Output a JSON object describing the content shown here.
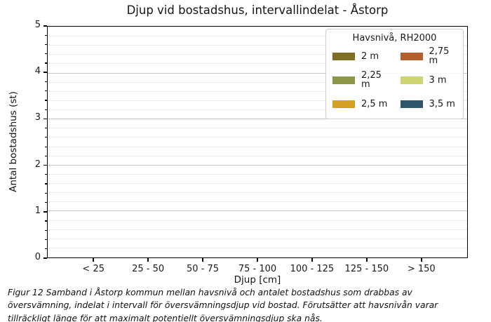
{
  "figure": {
    "caption": "Figur 12 Samband i Åstorp kommun mellan havsnivå och antalet bostadshus som drabbas av översvämning, indelat i intervall för översvämningsdjup vid bostad. Förutsätter att havsnivån varar tillräckligt länge för att maximalt potentiellt översvämningsdjup ska nås."
  },
  "chart_data": {
    "type": "bar",
    "title": "Djup vid bostadshus, intervallindelat - Åstorp",
    "xlabel": "Djup [cm]",
    "ylabel": "Antal bostadshus (st)",
    "categories": [
      "< 25",
      "25 - 50",
      "50 - 75",
      "75 - 100",
      "100 - 125",
      "125 - 150",
      "> 150"
    ],
    "ylim": [
      0,
      5
    ],
    "yticks": [
      0,
      1,
      2,
      3,
      4,
      5
    ],
    "grid": {
      "horizontal_major_step": 1,
      "horizontal_minor_step": 0.2,
      "vertical": false
    },
    "legend": {
      "title": "Havsnivå, RH2000",
      "position": "upper right",
      "columns": 2
    },
    "series": [
      {
        "name": "2 m",
        "color": "#7f6e26",
        "values": [
          0,
          0,
          0,
          0,
          0,
          0,
          0
        ]
      },
      {
        "name": "2,25 m",
        "color": "#8d9747",
        "values": [
          0,
          0,
          0,
          0,
          0,
          0,
          0
        ]
      },
      {
        "name": "2,5 m",
        "color": "#d4a128",
        "values": [
          0,
          0,
          0,
          0,
          0,
          0,
          0
        ]
      },
      {
        "name": "2,75 m",
        "color": "#b45d2d",
        "values": [
          0,
          0,
          0,
          0,
          0,
          0,
          0
        ]
      },
      {
        "name": "3 m",
        "color": "#ccd672",
        "values": [
          0,
          0,
          0,
          0,
          0,
          0,
          0
        ]
      },
      {
        "name": "3,5 m",
        "color": "#30566b",
        "values": [
          0,
          0,
          0,
          0,
          0,
          0,
          0
        ]
      }
    ]
  }
}
